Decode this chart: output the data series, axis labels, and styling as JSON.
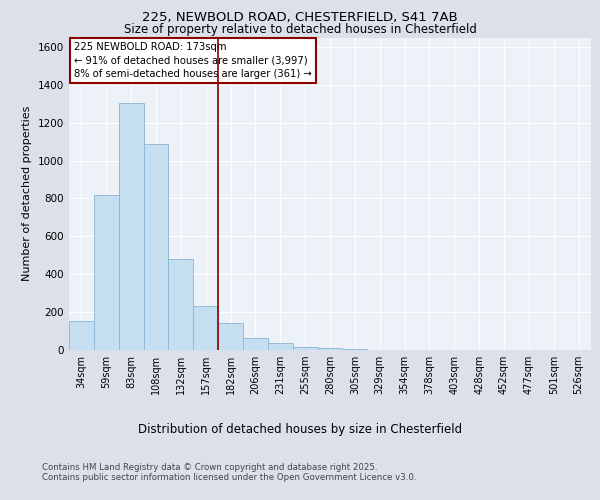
{
  "title_line1": "225, NEWBOLD ROAD, CHESTERFIELD, S41 7AB",
  "title_line2": "Size of property relative to detached houses in Chesterfield",
  "xlabel": "Distribution of detached houses by size in Chesterfield",
  "ylabel": "Number of detached properties",
  "categories": [
    "34sqm",
    "59sqm",
    "83sqm",
    "108sqm",
    "132sqm",
    "157sqm",
    "182sqm",
    "206sqm",
    "231sqm",
    "255sqm",
    "280sqm",
    "305sqm",
    "329sqm",
    "354sqm",
    "378sqm",
    "403sqm",
    "428sqm",
    "452sqm",
    "477sqm",
    "501sqm",
    "526sqm"
  ],
  "values": [
    155,
    820,
    1305,
    1090,
    480,
    230,
    145,
    65,
    35,
    15,
    8,
    3,
    2,
    1,
    1,
    0,
    0,
    0,
    0,
    0,
    0
  ],
  "bar_color": "#c5dff0",
  "bar_edge_color": "#8ab4d4",
  "vline_x": 5.5,
  "vline_color": "#8b0000",
  "annotation_text": "225 NEWBOLD ROAD: 173sqm\n← 91% of detached houses are smaller (3,997)\n8% of semi-detached houses are larger (361) →",
  "annotation_box_color": "white",
  "annotation_box_edge": "#8b0000",
  "ylim": [
    0,
    1650
  ],
  "yticks": [
    0,
    200,
    400,
    600,
    800,
    1000,
    1200,
    1400,
    1600
  ],
  "bg_color": "#dce0ea",
  "plot_bg_color": "#edf1f8",
  "footer_line1": "Contains HM Land Registry data © Crown copyright and database right 2025.",
  "footer_line2": "Contains public sector information licensed under the Open Government Licence v3.0."
}
